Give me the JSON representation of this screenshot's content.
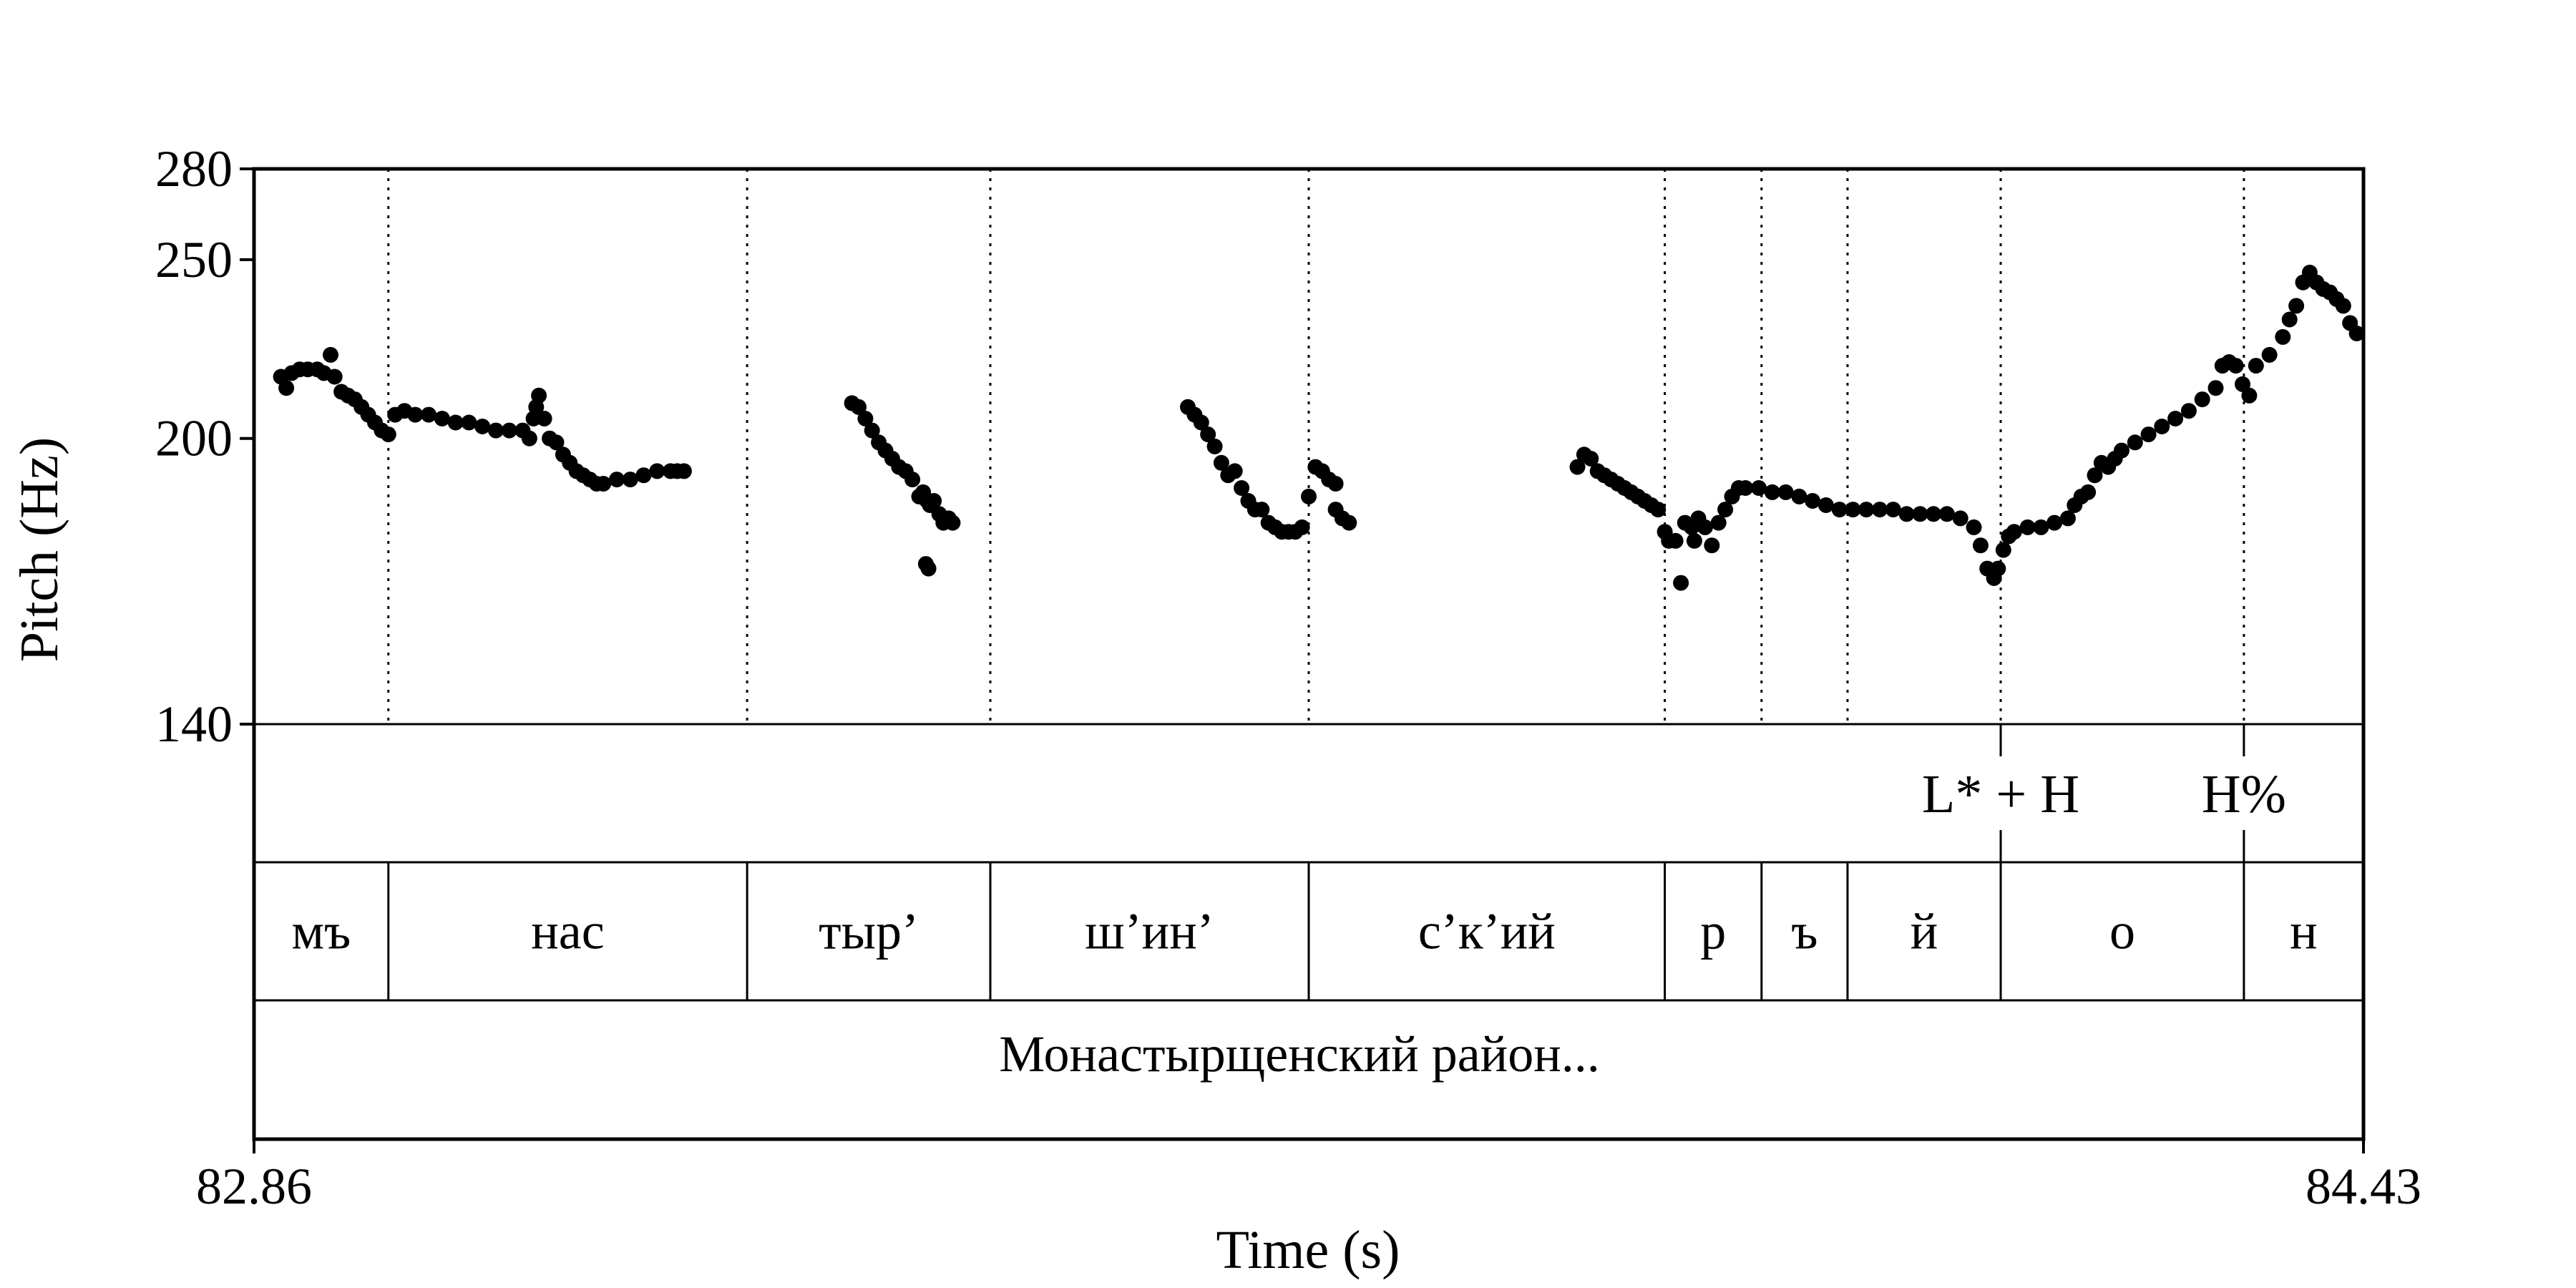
{
  "chart_data": {
    "type": "scatter",
    "xlabel": "Time (s)",
    "ylabel": "Pitch (Hz)",
    "xlim": [
      82.86,
      84.43
    ],
    "ylim": [
      140,
      280
    ],
    "y_scale": "log",
    "x_ticks": [
      "82.86",
      "84.43"
    ],
    "y_ticks": [
      {
        "value": 140,
        "label": "140"
      },
      {
        "value": 200,
        "label": "200"
      },
      {
        "value": 250,
        "label": "250"
      },
      {
        "value": 280,
        "label": "280"
      }
    ],
    "boundaries": [
      82.96,
      83.227,
      83.408,
      83.645,
      83.91,
      83.982,
      84.046,
      84.16,
      84.341
    ],
    "tones": [
      {
        "time": 84.16,
        "label": "L* + H"
      },
      {
        "time": 84.341,
        "label": "H%"
      }
    ],
    "segments": [
      {
        "start": 82.86,
        "end": 82.96,
        "label": "мъ"
      },
      {
        "start": 82.96,
        "end": 83.227,
        "label": "нас"
      },
      {
        "start": 83.227,
        "end": 83.408,
        "label": "тыр’"
      },
      {
        "start": 83.408,
        "end": 83.645,
        "label": "ш’ин’"
      },
      {
        "start": 83.645,
        "end": 83.91,
        "label": "с’к’ий"
      },
      {
        "start": 83.91,
        "end": 83.982,
        "label": "р"
      },
      {
        "start": 83.982,
        "end": 84.046,
        "label": "ъ"
      },
      {
        "start": 84.046,
        "end": 84.16,
        "label": "й"
      },
      {
        "start": 84.16,
        "end": 84.341,
        "label": "о"
      },
      {
        "start": 84.341,
        "end": 84.43,
        "label": "н"
      }
    ],
    "phrase": "Монастырщенский район...",
    "pitch_track": [
      {
        "x": 82.88,
        "y": 216
      },
      {
        "x": 82.884,
        "y": 213
      },
      {
        "x": 82.888,
        "y": 217
      },
      {
        "x": 82.894,
        "y": 218
      },
      {
        "x": 82.9,
        "y": 218
      },
      {
        "x": 82.907,
        "y": 218
      },
      {
        "x": 82.912,
        "y": 217
      },
      {
        "x": 82.917,
        "y": 222
      },
      {
        "x": 82.92,
        "y": 216
      },
      {
        "x": 82.925,
        "y": 212
      },
      {
        "x": 82.93,
        "y": 211
      },
      {
        "x": 82.935,
        "y": 210
      },
      {
        "x": 82.94,
        "y": 208
      },
      {
        "x": 82.945,
        "y": 206
      },
      {
        "x": 82.95,
        "y": 204
      },
      {
        "x": 82.955,
        "y": 202
      },
      {
        "x": 82.96,
        "y": 201
      },
      {
        "x": 82.965,
        "y": 206
      },
      {
        "x": 82.972,
        "y": 207
      },
      {
        "x": 82.98,
        "y": 206
      },
      {
        "x": 82.99,
        "y": 206
      },
      {
        "x": 83.0,
        "y": 205
      },
      {
        "x": 83.01,
        "y": 204
      },
      {
        "x": 83.02,
        "y": 204
      },
      {
        "x": 83.03,
        "y": 203
      },
      {
        "x": 83.04,
        "y": 202
      },
      {
        "x": 83.05,
        "y": 202
      },
      {
        "x": 83.06,
        "y": 202
      },
      {
        "x": 83.065,
        "y": 200
      },
      {
        "x": 83.068,
        "y": 205
      },
      {
        "x": 83.07,
        "y": 208
      },
      {
        "x": 83.072,
        "y": 211
      },
      {
        "x": 83.076,
        "y": 205
      },
      {
        "x": 83.08,
        "y": 200
      },
      {
        "x": 83.085,
        "y": 199
      },
      {
        "x": 83.09,
        "y": 196
      },
      {
        "x": 83.095,
        "y": 194
      },
      {
        "x": 83.1,
        "y": 192
      },
      {
        "x": 83.105,
        "y": 191
      },
      {
        "x": 83.11,
        "y": 190
      },
      {
        "x": 83.115,
        "y": 189
      },
      {
        "x": 83.12,
        "y": 189
      },
      {
        "x": 83.13,
        "y": 190
      },
      {
        "x": 83.14,
        "y": 190
      },
      {
        "x": 83.15,
        "y": 191
      },
      {
        "x": 83.16,
        "y": 192
      },
      {
        "x": 83.17,
        "y": 192
      },
      {
        "x": 83.175,
        "y": 192
      },
      {
        "x": 83.18,
        "y": 192
      },
      {
        "x": 83.305,
        "y": 209
      },
      {
        "x": 83.31,
        "y": 208
      },
      {
        "x": 83.315,
        "y": 205
      },
      {
        "x": 83.32,
        "y": 202
      },
      {
        "x": 83.325,
        "y": 199
      },
      {
        "x": 83.33,
        "y": 197
      },
      {
        "x": 83.335,
        "y": 195
      },
      {
        "x": 83.34,
        "y": 193
      },
      {
        "x": 83.345,
        "y": 192
      },
      {
        "x": 83.35,
        "y": 190
      },
      {
        "x": 83.355,
        "y": 186
      },
      {
        "x": 83.358,
        "y": 187
      },
      {
        "x": 83.361,
        "y": 185
      },
      {
        "x": 83.363,
        "y": 184
      },
      {
        "x": 83.366,
        "y": 185
      },
      {
        "x": 83.37,
        "y": 182
      },
      {
        "x": 83.373,
        "y": 180
      },
      {
        "x": 83.377,
        "y": 181
      },
      {
        "x": 83.38,
        "y": 180
      },
      {
        "x": 83.36,
        "y": 171
      },
      {
        "x": 83.362,
        "y": 170
      },
      {
        "x": 83.555,
        "y": 208
      },
      {
        "x": 83.56,
        "y": 206
      },
      {
        "x": 83.565,
        "y": 204
      },
      {
        "x": 83.57,
        "y": 201
      },
      {
        "x": 83.575,
        "y": 198
      },
      {
        "x": 83.58,
        "y": 194
      },
      {
        "x": 83.585,
        "y": 191
      },
      {
        "x": 83.59,
        "y": 192
      },
      {
        "x": 83.595,
        "y": 188
      },
      {
        "x": 83.6,
        "y": 185
      },
      {
        "x": 83.605,
        "y": 183
      },
      {
        "x": 83.61,
        "y": 183
      },
      {
        "x": 83.615,
        "y": 180
      },
      {
        "x": 83.62,
        "y": 179
      },
      {
        "x": 83.625,
        "y": 178
      },
      {
        "x": 83.63,
        "y": 178
      },
      {
        "x": 83.635,
        "y": 178
      },
      {
        "x": 83.64,
        "y": 179
      },
      {
        "x": 83.645,
        "y": 186
      },
      {
        "x": 83.65,
        "y": 193
      },
      {
        "x": 83.655,
        "y": 192
      },
      {
        "x": 83.66,
        "y": 190
      },
      {
        "x": 83.665,
        "y": 189
      },
      {
        "x": 83.665,
        "y": 183
      },
      {
        "x": 83.67,
        "y": 181
      },
      {
        "x": 83.675,
        "y": 180
      },
      {
        "x": 83.845,
        "y": 193
      },
      {
        "x": 83.85,
        "y": 196
      },
      {
        "x": 83.855,
        "y": 195
      },
      {
        "x": 83.86,
        "y": 192
      },
      {
        "x": 83.865,
        "y": 191
      },
      {
        "x": 83.87,
        "y": 190
      },
      {
        "x": 83.875,
        "y": 189
      },
      {
        "x": 83.88,
        "y": 188
      },
      {
        "x": 83.885,
        "y": 187
      },
      {
        "x": 83.89,
        "y": 186
      },
      {
        "x": 83.895,
        "y": 185
      },
      {
        "x": 83.9,
        "y": 184
      },
      {
        "x": 83.905,
        "y": 183
      },
      {
        "x": 83.91,
        "y": 178
      },
      {
        "x": 83.913,
        "y": 176
      },
      {
        "x": 83.918,
        "y": 176
      },
      {
        "x": 83.922,
        "y": 167
      },
      {
        "x": 83.925,
        "y": 180
      },
      {
        "x": 83.93,
        "y": 179
      },
      {
        "x": 83.932,
        "y": 176
      },
      {
        "x": 83.935,
        "y": 181
      },
      {
        "x": 83.94,
        "y": 179
      },
      {
        "x": 83.945,
        "y": 175
      },
      {
        "x": 83.95,
        "y": 180
      },
      {
        "x": 83.955,
        "y": 183
      },
      {
        "x": 83.96,
        "y": 186
      },
      {
        "x": 83.965,
        "y": 188
      },
      {
        "x": 83.97,
        "y": 188
      },
      {
        "x": 83.98,
        "y": 188
      },
      {
        "x": 83.99,
        "y": 187
      },
      {
        "x": 84.0,
        "y": 187
      },
      {
        "x": 84.01,
        "y": 186
      },
      {
        "x": 84.02,
        "y": 185
      },
      {
        "x": 84.03,
        "y": 184
      },
      {
        "x": 84.04,
        "y": 183
      },
      {
        "x": 84.05,
        "y": 183
      },
      {
        "x": 84.06,
        "y": 183
      },
      {
        "x": 84.07,
        "y": 183
      },
      {
        "x": 84.08,
        "y": 183
      },
      {
        "x": 84.09,
        "y": 182
      },
      {
        "x": 84.1,
        "y": 182
      },
      {
        "x": 84.11,
        "y": 182
      },
      {
        "x": 84.12,
        "y": 182
      },
      {
        "x": 84.13,
        "y": 181
      },
      {
        "x": 84.14,
        "y": 179
      },
      {
        "x": 84.145,
        "y": 175
      },
      {
        "x": 84.15,
        "y": 170
      },
      {
        "x": 84.155,
        "y": 168
      },
      {
        "x": 84.158,
        "y": 170
      },
      {
        "x": 84.162,
        "y": 174
      },
      {
        "x": 84.166,
        "y": 177
      },
      {
        "x": 84.17,
        "y": 178
      },
      {
        "x": 84.18,
        "y": 179
      },
      {
        "x": 84.19,
        "y": 179
      },
      {
        "x": 84.2,
        "y": 180
      },
      {
        "x": 84.21,
        "y": 181
      },
      {
        "x": 84.215,
        "y": 184
      },
      {
        "x": 84.22,
        "y": 186
      },
      {
        "x": 84.225,
        "y": 187
      },
      {
        "x": 84.23,
        "y": 191
      },
      {
        "x": 84.235,
        "y": 194
      },
      {
        "x": 84.24,
        "y": 193
      },
      {
        "x": 84.245,
        "y": 195
      },
      {
        "x": 84.25,
        "y": 197
      },
      {
        "x": 84.26,
        "y": 199
      },
      {
        "x": 84.27,
        "y": 201
      },
      {
        "x": 84.28,
        "y": 203
      },
      {
        "x": 84.29,
        "y": 205
      },
      {
        "x": 84.3,
        "y": 207
      },
      {
        "x": 84.31,
        "y": 210
      },
      {
        "x": 84.32,
        "y": 213
      },
      {
        "x": 84.325,
        "y": 219
      },
      {
        "x": 84.33,
        "y": 220
      },
      {
        "x": 84.335,
        "y": 219
      },
      {
        "x": 84.34,
        "y": 214
      },
      {
        "x": 84.345,
        "y": 211
      },
      {
        "x": 84.35,
        "y": 219
      },
      {
        "x": 84.36,
        "y": 222
      },
      {
        "x": 84.37,
        "y": 227
      },
      {
        "x": 84.375,
        "y": 232
      },
      {
        "x": 84.38,
        "y": 236
      },
      {
        "x": 84.385,
        "y": 243
      },
      {
        "x": 84.39,
        "y": 246
      },
      {
        "x": 84.395,
        "y": 243
      },
      {
        "x": 84.4,
        "y": 241
      },
      {
        "x": 84.405,
        "y": 240
      },
      {
        "x": 84.41,
        "y": 238
      },
      {
        "x": 84.415,
        "y": 236
      },
      {
        "x": 84.42,
        "y": 231
      },
      {
        "x": 84.425,
        "y": 228
      }
    ]
  }
}
